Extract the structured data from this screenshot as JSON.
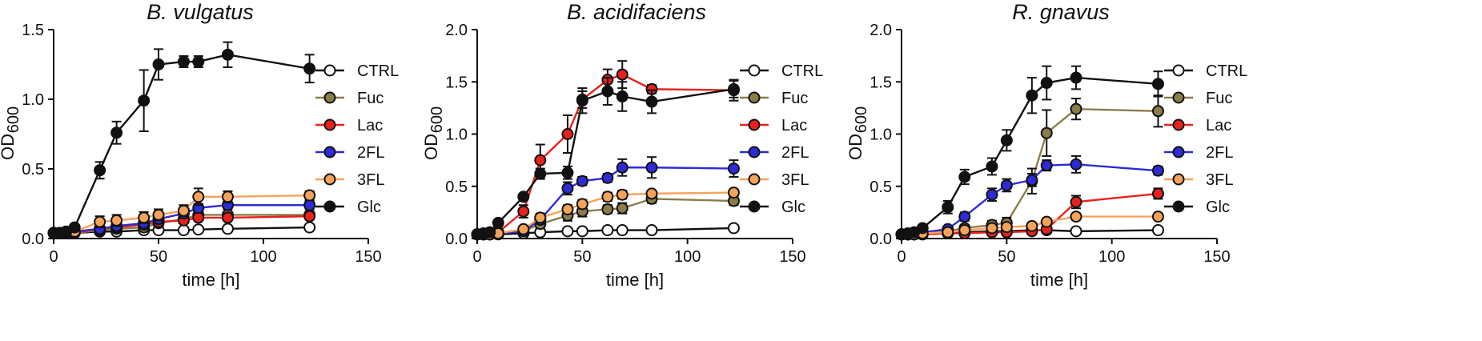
{
  "chart_data": [
    {
      "type": "line",
      "title": "B. vulgatus",
      "xlabel": "time [h]",
      "ylabel": "OD",
      "ylabel_sub": "600",
      "xlim": [
        0,
        150
      ],
      "ylim": [
        0,
        1.5
      ],
      "xticks": [
        "0",
        "50",
        "100",
        "150"
      ],
      "yticks": [
        "0.0",
        "0.5",
        "1.0",
        "1.5"
      ],
      "series": [
        {
          "name": "CTRL",
          "color": "#ffffff",
          "x": [
            0,
            3,
            6,
            10,
            22,
            30,
            43,
            50,
            62,
            69,
            83,
            122
          ],
          "y": [
            0.04,
            0.04,
            0.04,
            0.04,
            0.05,
            0.05,
            0.06,
            0.06,
            0.06,
            0.065,
            0.07,
            0.08
          ],
          "err": [
            0,
            0,
            0,
            0,
            0,
            0,
            0,
            0,
            0,
            0,
            0,
            0
          ]
        },
        {
          "name": "Fuc",
          "color": "#8b7d4a",
          "x": [
            0,
            3,
            6,
            10,
            22,
            30,
            43,
            50,
            62,
            69,
            83,
            122
          ],
          "y": [
            0.04,
            0.04,
            0.04,
            0.04,
            0.06,
            0.07,
            0.08,
            0.11,
            0.14,
            0.17,
            0.17,
            0.17
          ],
          "err": [
            0,
            0,
            0,
            0,
            0.01,
            0.01,
            0.01,
            0.02,
            0.02,
            0.02,
            0.02,
            0.02
          ]
        },
        {
          "name": "Lac",
          "color": "#e8211c",
          "x": [
            0,
            3,
            6,
            10,
            22,
            30,
            43,
            50,
            62,
            69,
            83,
            122
          ],
          "y": [
            0.04,
            0.04,
            0.04,
            0.04,
            0.07,
            0.08,
            0.1,
            0.12,
            0.13,
            0.15,
            0.15,
            0.16
          ],
          "err": [
            0,
            0,
            0,
            0,
            0.01,
            0.01,
            0.01,
            0.02,
            0.02,
            0.02,
            0.02,
            0.02
          ]
        },
        {
          "name": "2FL",
          "color": "#2d2bd6",
          "x": [
            0,
            3,
            6,
            10,
            22,
            30,
            43,
            50,
            62,
            69,
            83,
            122
          ],
          "y": [
            0.04,
            0.04,
            0.04,
            0.05,
            0.07,
            0.09,
            0.11,
            0.14,
            0.18,
            0.22,
            0.24,
            0.24
          ],
          "err": [
            0,
            0,
            0,
            0,
            0.01,
            0.01,
            0.02,
            0.02,
            0.03,
            0.03,
            0.03,
            0.03
          ]
        },
        {
          "name": "3FL",
          "color": "#f6a35a",
          "x": [
            0,
            3,
            6,
            10,
            22,
            30,
            43,
            50,
            62,
            69,
            83,
            122
          ],
          "y": [
            0.04,
            0.04,
            0.04,
            0.05,
            0.12,
            0.13,
            0.15,
            0.17,
            0.2,
            0.3,
            0.3,
            0.31
          ],
          "err": [
            0,
            0,
            0,
            0,
            0.04,
            0.04,
            0.04,
            0.04,
            0.04,
            0.06,
            0.04,
            0.03
          ]
        },
        {
          "name": "Glc",
          "color": "#111111",
          "x": [
            0,
            3,
            6,
            10,
            22,
            30,
            43,
            50,
            62,
            69,
            83,
            122
          ],
          "y": [
            0.04,
            0.04,
            0.05,
            0.08,
            0.49,
            0.76,
            0.99,
            1.25,
            1.27,
            1.27,
            1.32,
            1.22
          ],
          "err": [
            0,
            0,
            0,
            0.01,
            0.06,
            0.08,
            0.22,
            0.11,
            0.04,
            0.04,
            0.09,
            0.1
          ]
        }
      ],
      "legend": [
        "CTRL",
        "Fuc",
        "Lac",
        "2FL",
        "3FL",
        "Glc"
      ]
    },
    {
      "type": "line",
      "title": "B. acidifaciens",
      "xlabel": "time [h]",
      "ylabel": "OD",
      "ylabel_sub": "600",
      "xlim": [
        0,
        150
      ],
      "ylim": [
        0,
        2.0
      ],
      "xticks": [
        "0",
        "50",
        "100",
        "150"
      ],
      "yticks": [
        "0.0",
        "0.5",
        "1.0",
        "1.5",
        "2.0"
      ],
      "series": [
        {
          "name": "CTRL",
          "color": "#ffffff",
          "x": [
            0,
            3,
            6,
            10,
            22,
            30,
            43,
            50,
            62,
            69,
            83,
            122
          ],
          "y": [
            0.04,
            0.04,
            0.04,
            0.04,
            0.05,
            0.06,
            0.07,
            0.07,
            0.08,
            0.08,
            0.08,
            0.1
          ],
          "err": [
            0,
            0,
            0,
            0,
            0,
            0,
            0,
            0,
            0,
            0,
            0,
            0
          ]
        },
        {
          "name": "Fuc",
          "color": "#8b7d4a",
          "x": [
            0,
            3,
            6,
            10,
            22,
            30,
            43,
            50,
            62,
            69,
            83,
            122
          ],
          "y": [
            0.04,
            0.04,
            0.04,
            0.05,
            0.07,
            0.14,
            0.22,
            0.26,
            0.28,
            0.29,
            0.38,
            0.36
          ],
          "err": [
            0,
            0,
            0,
            0,
            0.02,
            0.04,
            0.05,
            0.05,
            0.04,
            0.05,
            0.04,
            0.04
          ]
        },
        {
          "name": "Lac",
          "color": "#e8211c",
          "x": [
            0,
            3,
            6,
            10,
            22,
            30,
            43,
            50,
            62,
            69,
            83,
            122
          ],
          "y": [
            0.04,
            0.04,
            0.05,
            0.06,
            0.26,
            0.75,
            1.0,
            1.33,
            1.52,
            1.57,
            1.43,
            1.42
          ],
          "err": [
            0,
            0,
            0,
            0.01,
            0.06,
            0.15,
            0.18,
            0.08,
            0.1,
            0.13,
            0.04,
            0.1
          ]
        },
        {
          "name": "2FL",
          "color": "#2d2bd6",
          "x": [
            0,
            3,
            6,
            10,
            22,
            30,
            43,
            50,
            62,
            69,
            83,
            122
          ],
          "y": [
            0.04,
            0.04,
            0.04,
            0.05,
            0.07,
            0.18,
            0.48,
            0.55,
            0.58,
            0.68,
            0.68,
            0.67
          ],
          "err": [
            0,
            0,
            0,
            0,
            0.02,
            0.04,
            0.06,
            0.04,
            0.04,
            0.08,
            0.1,
            0.08
          ]
        },
        {
          "name": "3FL",
          "color": "#f6a35a",
          "x": [
            0,
            3,
            6,
            10,
            22,
            30,
            43,
            50,
            62,
            69,
            83,
            122
          ],
          "y": [
            0.04,
            0.04,
            0.04,
            0.05,
            0.09,
            0.2,
            0.28,
            0.33,
            0.4,
            0.42,
            0.43,
            0.44
          ],
          "err": [
            0,
            0,
            0,
            0,
            0.02,
            0.04,
            0.04,
            0.04,
            0.04,
            0.04,
            0.03,
            0.03
          ]
        },
        {
          "name": "Glc",
          "color": "#111111",
          "x": [
            0,
            3,
            6,
            10,
            22,
            30,
            43,
            50,
            62,
            69,
            83,
            122
          ],
          "y": [
            0.04,
            0.05,
            0.06,
            0.15,
            0.4,
            0.62,
            0.63,
            1.32,
            1.41,
            1.36,
            1.31,
            1.43
          ],
          "err": [
            0,
            0,
            0,
            0.02,
            0.03,
            0.05,
            0.06,
            0.12,
            0.13,
            0.14,
            0.11,
            0.08
          ]
        }
      ],
      "legend": [
        "CTRL",
        "Fuc",
        "Lac",
        "2FL",
        "3FL",
        "Glc"
      ]
    },
    {
      "type": "line",
      "title": "R. gnavus",
      "xlabel": "time [h]",
      "ylabel": "OD",
      "ylabel_sub": "600",
      "xlim": [
        0,
        150
      ],
      "ylim": [
        0,
        2.0
      ],
      "xticks": [
        "0",
        "50",
        "100",
        "150"
      ],
      "yticks": [
        "0.0",
        "0.5",
        "1.0",
        "1.5",
        "2.0"
      ],
      "series": [
        {
          "name": "CTRL",
          "color": "#ffffff",
          "x": [
            0,
            3,
            6,
            10,
            22,
            30,
            43,
            50,
            62,
            69,
            83,
            122
          ],
          "y": [
            0.04,
            0.04,
            0.04,
            0.04,
            0.05,
            0.06,
            0.07,
            0.07,
            0.08,
            0.08,
            0.07,
            0.08
          ],
          "err": [
            0,
            0,
            0,
            0,
            0,
            0,
            0,
            0,
            0,
            0,
            0,
            0
          ]
        },
        {
          "name": "Fuc",
          "color": "#8b7d4a",
          "x": [
            0,
            3,
            6,
            10,
            22,
            30,
            43,
            50,
            62,
            69,
            83,
            122
          ],
          "y": [
            0.04,
            0.04,
            0.04,
            0.05,
            0.07,
            0.1,
            0.13,
            0.15,
            0.55,
            1.01,
            1.24,
            1.22
          ],
          "err": [
            0,
            0,
            0,
            0,
            0.02,
            0.03,
            0.04,
            0.05,
            0.12,
            0.22,
            0.1,
            0.15
          ]
        },
        {
          "name": "Lac",
          "color": "#e8211c",
          "x": [
            0,
            3,
            6,
            10,
            22,
            30,
            43,
            50,
            62,
            69,
            83,
            122
          ],
          "y": [
            0.04,
            0.04,
            0.04,
            0.04,
            0.05,
            0.05,
            0.06,
            0.06,
            0.07,
            0.09,
            0.35,
            0.43
          ],
          "err": [
            0,
            0,
            0,
            0,
            0,
            0,
            0,
            0,
            0.02,
            0.02,
            0.06,
            0.05
          ]
        },
        {
          "name": "2FL",
          "color": "#2d2bd6",
          "x": [
            0,
            3,
            6,
            10,
            22,
            30,
            43,
            50,
            62,
            69,
            83,
            122
          ],
          "y": [
            0.04,
            0.04,
            0.05,
            0.06,
            0.09,
            0.21,
            0.42,
            0.51,
            0.56,
            0.7,
            0.71,
            0.65
          ],
          "err": [
            0,
            0,
            0,
            0,
            0.02,
            0.04,
            0.06,
            0.06,
            0.06,
            0.05,
            0.08,
            0.04
          ]
        },
        {
          "name": "3FL",
          "color": "#f6a35a",
          "x": [
            0,
            3,
            6,
            10,
            22,
            30,
            43,
            50,
            62,
            69,
            83,
            122
          ],
          "y": [
            0.04,
            0.04,
            0.04,
            0.05,
            0.06,
            0.08,
            0.1,
            0.11,
            0.12,
            0.16,
            0.21,
            0.21
          ],
          "err": [
            0,
            0,
            0,
            0,
            0.01,
            0.02,
            0.02,
            0.02,
            0.02,
            0.03,
            0.03,
            0.02
          ]
        },
        {
          "name": "Glc",
          "color": "#111111",
          "x": [
            0,
            3,
            6,
            10,
            22,
            30,
            43,
            50,
            62,
            69,
            83,
            122
          ],
          "y": [
            0.04,
            0.05,
            0.06,
            0.1,
            0.3,
            0.59,
            0.69,
            0.94,
            1.37,
            1.49,
            1.54,
            1.48
          ],
          "err": [
            0,
            0,
            0,
            0.02,
            0.06,
            0.07,
            0.08,
            0.1,
            0.17,
            0.16,
            0.11,
            0.12
          ]
        }
      ],
      "legend": [
        "CTRL",
        "Fuc",
        "Lac",
        "2FL",
        "3FL",
        "Glc"
      ]
    }
  ]
}
